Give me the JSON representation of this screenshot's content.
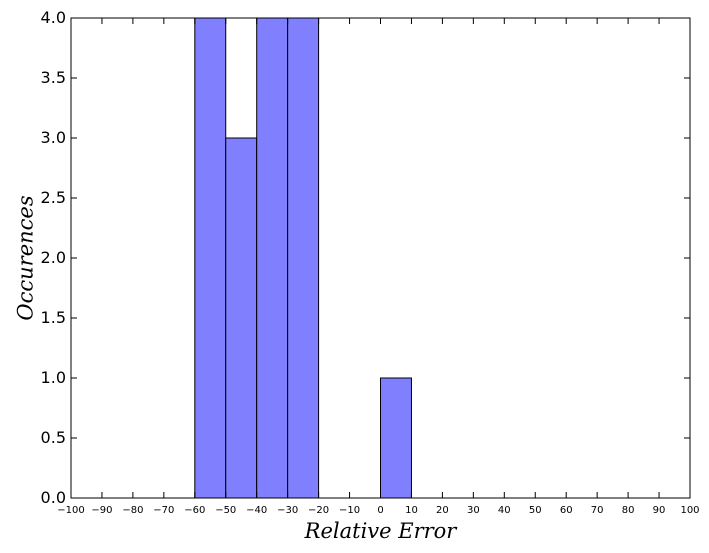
{
  "chart_data": {
    "type": "bar",
    "title": "",
    "xlabel": "Relative Error",
    "ylabel": "Occurences",
    "xlim": [
      -100,
      100
    ],
    "ylim": [
      0,
      4
    ],
    "grid": false,
    "bar_color": "#8080ff",
    "bar_edge_color": "#000000",
    "bins": [
      {
        "x0": -60,
        "x1": -50,
        "value": 4
      },
      {
        "x0": -50,
        "x1": -40,
        "value": 3
      },
      {
        "x0": -40,
        "x1": -30,
        "value": 4
      },
      {
        "x0": -30,
        "x1": -20,
        "value": 4
      },
      {
        "x0": -20,
        "x1": -10,
        "value": 0
      },
      {
        "x0": -10,
        "x1": 0,
        "value": 0
      },
      {
        "x0": 0,
        "x1": 10,
        "value": 1
      }
    ],
    "x_ticks": [
      "−100",
      "−90",
      "−80",
      "−70",
      "−60",
      "−50",
      "−40",
      "−30",
      "−20",
      "−10",
      "0",
      "10",
      "20",
      "30",
      "40",
      "50",
      "60",
      "70",
      "80",
      "90",
      "100"
    ],
    "y_ticks": [
      "0.0",
      "0.5",
      "1.0",
      "1.5",
      "2.0",
      "2.5",
      "3.0",
      "3.5",
      "4.0"
    ]
  }
}
